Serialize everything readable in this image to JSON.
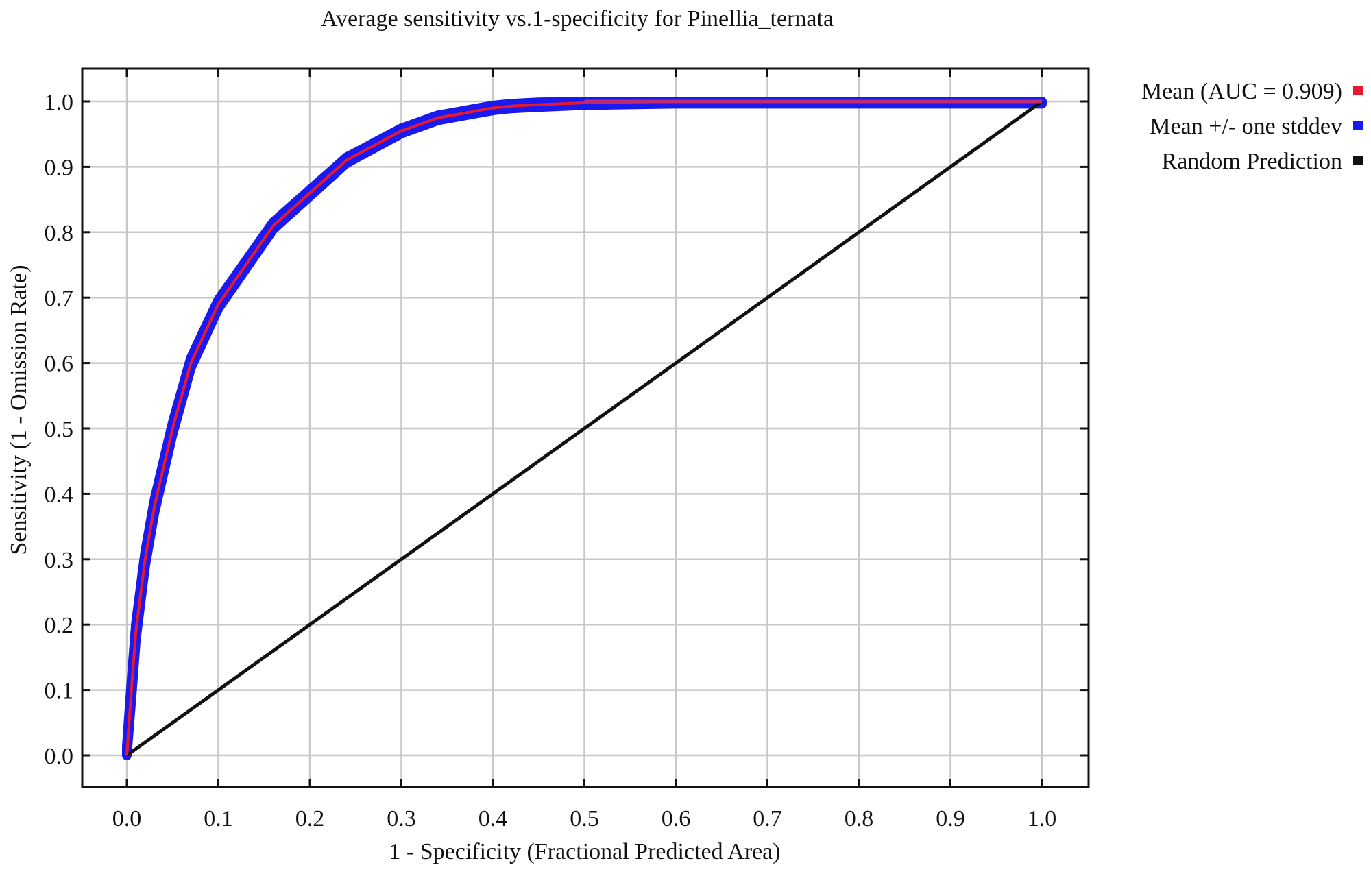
{
  "chart_data": {
    "type": "line",
    "title": "Average sensitivity vs.1-specificity for Pinellia_ternata",
    "xlabel": "1 - Specificity (Fractional Predicted Area)",
    "ylabel": "Sensitivity (1 - Omission Rate)",
    "xlim": [
      0.0,
      1.0
    ],
    "ylim": [
      0.0,
      1.0
    ],
    "x_ticks": [
      "0.0",
      "0.1",
      "0.2",
      "0.3",
      "0.4",
      "0.5",
      "0.6",
      "0.7",
      "0.8",
      "0.9",
      "1.0"
    ],
    "y_ticks": [
      "0.0",
      "0.1",
      "0.2",
      "0.3",
      "0.4",
      "0.5",
      "0.6",
      "0.7",
      "0.8",
      "0.9",
      "1.0"
    ],
    "grid": true,
    "legend_position": "right-top-outside",
    "series": [
      {
        "name": "Mean (AUC = 0.909)",
        "color": "#e8192c",
        "x": [
          0.0,
          0.005,
          0.01,
          0.02,
          0.03,
          0.04,
          0.05,
          0.06,
          0.07,
          0.08,
          0.09,
          0.1,
          0.12,
          0.14,
          0.16,
          0.18,
          0.2,
          0.22,
          0.24,
          0.26,
          0.28,
          0.3,
          0.32,
          0.34,
          0.36,
          0.38,
          0.4,
          0.42,
          0.45,
          0.5,
          0.55,
          0.6,
          0.7,
          0.8,
          0.9,
          1.0
        ],
        "y": [
          0.0,
          0.1,
          0.19,
          0.3,
          0.38,
          0.44,
          0.5,
          0.55,
          0.6,
          0.63,
          0.66,
          0.69,
          0.73,
          0.77,
          0.81,
          0.835,
          0.86,
          0.885,
          0.91,
          0.925,
          0.94,
          0.955,
          0.965,
          0.975,
          0.98,
          0.985,
          0.99,
          0.993,
          0.995,
          0.998,
          0.999,
          1.0,
          1.0,
          1.0,
          1.0,
          1.0
        ]
      },
      {
        "name": "Mean +/- one stddev",
        "color": "#1a1af0",
        "band_halfwidth": 0.012
      },
      {
        "name": "Random Prediction",
        "color": "#111111",
        "x": [
          0.0,
          1.0
        ],
        "y": [
          0.0,
          1.0
        ]
      }
    ]
  }
}
